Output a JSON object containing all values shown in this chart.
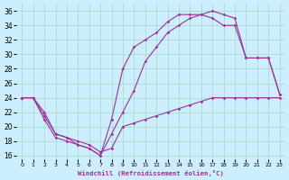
{
  "xlabel": "Windchill (Refroidissement éolien,°C)",
  "bg_color": "#cceeff",
  "grid_color": "#aaddcc",
  "line_color": "#993399",
  "xlim": [
    -0.5,
    23.5
  ],
  "ylim": [
    15.5,
    37
  ],
  "yticks": [
    16,
    18,
    20,
    22,
    24,
    26,
    28,
    30,
    32,
    34,
    36
  ],
  "xticks": [
    0,
    1,
    2,
    3,
    4,
    5,
    6,
    7,
    8,
    9,
    10,
    11,
    12,
    13,
    14,
    15,
    16,
    17,
    18,
    19,
    20,
    21,
    22,
    23
  ],
  "series": [
    {
      "x": [
        0,
        1,
        2,
        3,
        4,
        5,
        6,
        7,
        8,
        9,
        10,
        11,
        12,
        13,
        14,
        15,
        16,
        17,
        18,
        19,
        20,
        21,
        22,
        23
      ],
      "y": [
        24,
        24,
        22,
        19,
        18.5,
        18,
        17.5,
        16.5,
        17,
        20,
        20.5,
        21,
        21.5,
        22,
        22.5,
        23,
        23.5,
        24,
        24,
        24,
        24,
        24,
        24,
        24
      ]
    },
    {
      "x": [
        0,
        1,
        2,
        3,
        4,
        5,
        6,
        7,
        8,
        9,
        10,
        11,
        12,
        13,
        14,
        15,
        16,
        17,
        18,
        19,
        20,
        21,
        22,
        23
      ],
      "y": [
        24,
        24,
        21,
        18.5,
        18,
        17.5,
        17,
        16,
        19,
        22,
        25,
        29,
        31,
        33,
        34,
        35,
        35.5,
        35,
        34,
        34,
        29.5,
        29.5,
        29.5,
        24.5
      ]
    },
    {
      "x": [
        0,
        1,
        2,
        3,
        4,
        5,
        6,
        7,
        8,
        9,
        10,
        11,
        12,
        13,
        14,
        15,
        16,
        17,
        18,
        19,
        20,
        21,
        22,
        23
      ],
      "y": [
        24,
        24,
        21.5,
        19,
        18.5,
        17.5,
        17,
        16,
        21,
        28,
        31,
        32,
        33,
        34.5,
        35.5,
        35.5,
        35.5,
        36,
        35.5,
        35,
        29.5,
        29.5,
        29.5,
        24.5
      ]
    }
  ]
}
